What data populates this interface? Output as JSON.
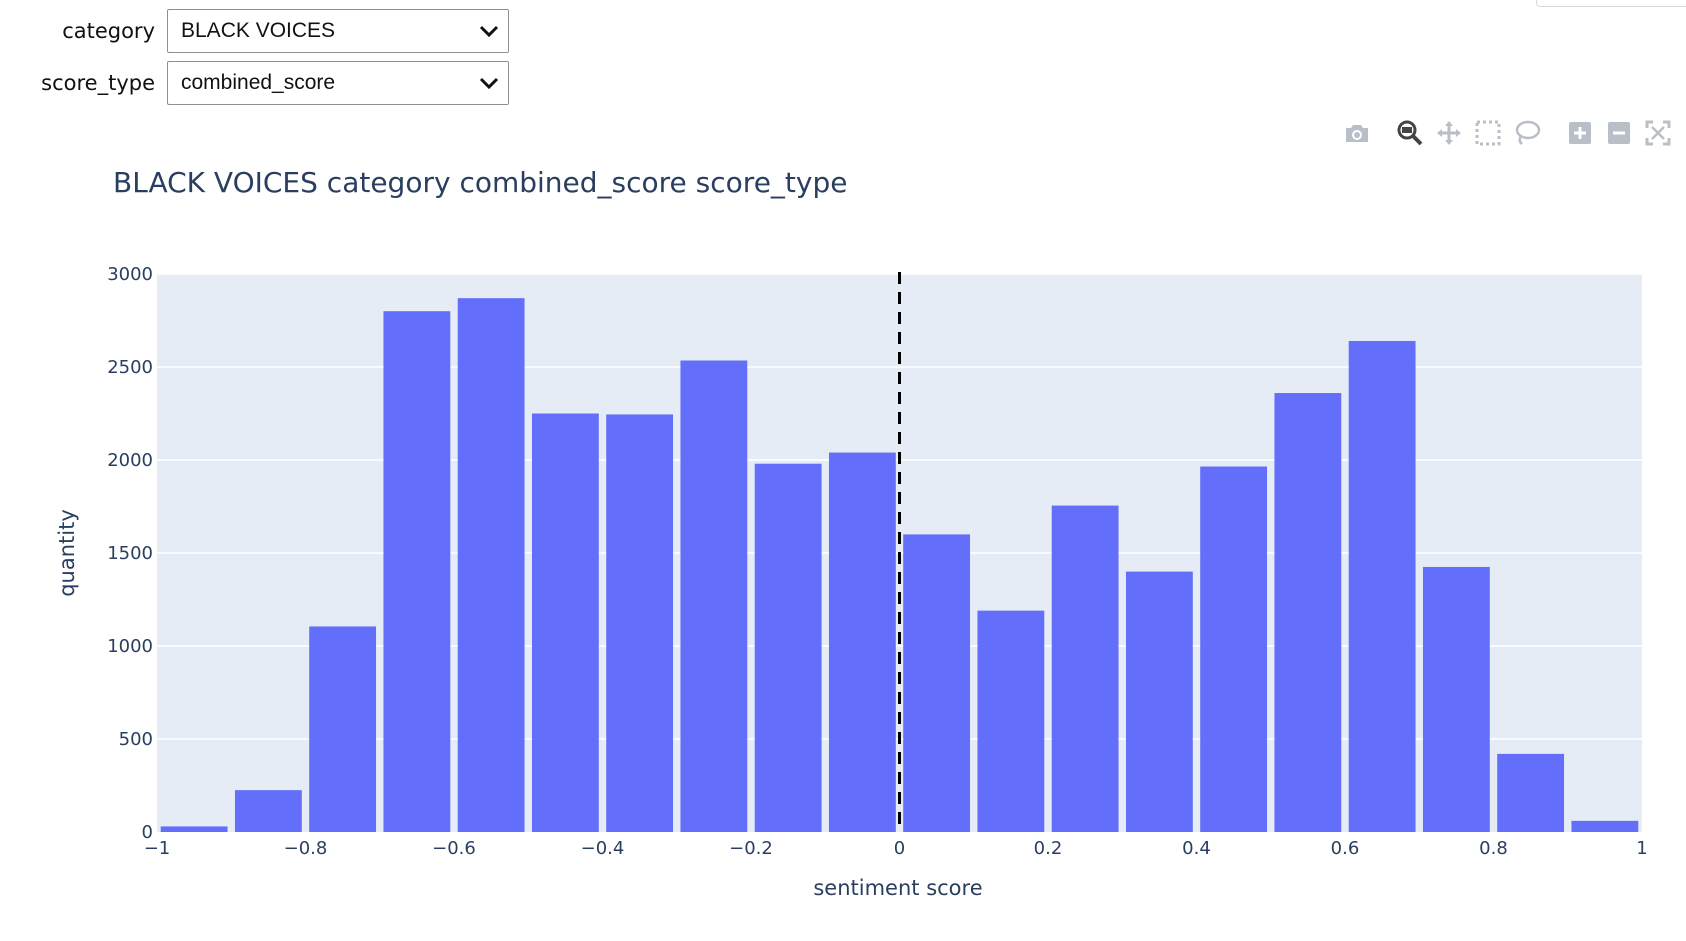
{
  "controls": {
    "category": {
      "label": "category",
      "value": "BLACK VOICES"
    },
    "score_type": {
      "label": "score_type",
      "value": "combined_score"
    }
  },
  "modebar": {
    "icons": [
      "camera-icon",
      "zoom-icon",
      "pan-icon",
      "box-select-icon",
      "lasso-icon",
      "zoom-in-icon",
      "zoom-out-icon",
      "autoscale-icon"
    ]
  },
  "colors": {
    "bar": "#636efa",
    "plot_bg": "#e5ecf6",
    "grid": "#ffffff",
    "text": "#2a3f5f",
    "reference_line": "#000000"
  },
  "chart_data": {
    "type": "bar",
    "title": "BLACK VOICES category combined_score score_type",
    "xlabel": "sentiment score",
    "ylabel": "quantity",
    "xlim": [
      -1,
      1
    ],
    "ylim": [
      0,
      3000
    ],
    "bin_edges": [
      -1,
      -0.9,
      -0.8,
      -0.7,
      -0.6,
      -0.5,
      -0.4,
      -0.3,
      -0.2,
      -0.1,
      0,
      0.1,
      0.2,
      0.3,
      0.4,
      0.5,
      0.6,
      0.7,
      0.8,
      0.9,
      1
    ],
    "values": [
      30,
      225,
      1105,
      2800,
      2870,
      2250,
      2245,
      2535,
      1980,
      2040,
      1600,
      1190,
      1755,
      1400,
      1965,
      2360,
      2640,
      1425,
      420,
      60
    ],
    "x_tick_values": [
      -1,
      -0.8,
      -0.6,
      -0.4,
      -0.2,
      0,
      0.2,
      0.4,
      0.6,
      0.8,
      1
    ],
    "x_tick_labels": [
      "−1",
      "−0.8",
      "−0.6",
      "−0.4",
      "−0.2",
      "0",
      "0.2",
      "0.4",
      "0.6",
      "0.8",
      "1"
    ],
    "y_tick_values": [
      0,
      500,
      1000,
      1500,
      2000,
      2500,
      3000
    ],
    "y_tick_labels": [
      "0",
      "500",
      "1000",
      "1500",
      "2000",
      "2500",
      "3000"
    ],
    "reference_line": {
      "x": 0,
      "style": "dashed"
    },
    "grid": true,
    "legend": "none"
  }
}
